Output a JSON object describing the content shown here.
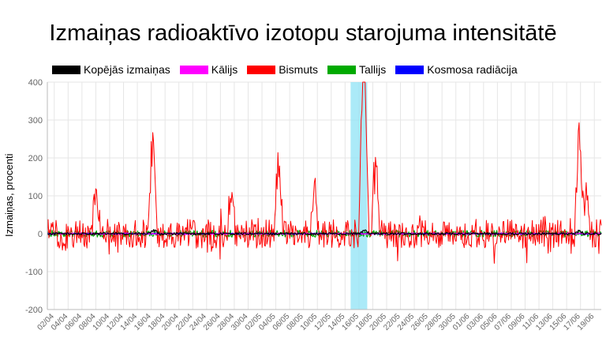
{
  "chart_data": {
    "type": "line",
    "title": "Izmaiņas radioaktīvo izotopu starojuma intensitātē",
    "xlabel": "",
    "ylabel": "Izmaiņas, procenti",
    "ylim": [
      -200,
      400
    ],
    "yticks": [
      400,
      300,
      200,
      100,
      0,
      -100,
      -200
    ],
    "grid": true,
    "legend_position": "top-left",
    "x_categories": [
      "02/04",
      "04/04",
      "06/04",
      "08/04",
      "10/04",
      "12/04",
      "14/04",
      "16/04",
      "18/04",
      "20/04",
      "22/04",
      "24/04",
      "26/04",
      "28/04",
      "30/04",
      "02/05",
      "04/05",
      "06/05",
      "08/05",
      "10/05",
      "12/05",
      "14/05",
      "16/05",
      "18/05",
      "20/05",
      "22/05",
      "24/05",
      "26/05",
      "28/05",
      "30/05",
      "01/06",
      "03/06",
      "05/06",
      "07/06",
      "09/06",
      "11/06",
      "13/06",
      "15/06",
      "17/06",
      "19/06"
    ],
    "highlight_range": [
      "14/05",
      "17/05"
    ],
    "series": [
      {
        "name": "Kopējās izmaiņas",
        "color": "#000000",
        "noise": 3,
        "peaks": [
          [
            7.2,
            12
          ],
          [
            22.4,
            14
          ],
          [
            37.9,
            10
          ]
        ]
      },
      {
        "name": "Kālijs",
        "color": "#ff00ff",
        "noise": 2,
        "peaks": []
      },
      {
        "name": "Bismuts",
        "color": "#ff0000",
        "noise": 38,
        "peaks": [
          [
            3.0,
            145
          ],
          [
            7.1,
            340
          ],
          [
            12.8,
            155
          ],
          [
            16.2,
            238
          ],
          [
            18.8,
            145
          ],
          [
            22.3,
            365
          ],
          [
            22.4,
            300
          ],
          [
            23.2,
            210
          ],
          [
            37.9,
            318
          ],
          [
            38.4,
            120
          ]
        ]
      },
      {
        "name": "Tallijs",
        "color": "#00aa00",
        "noise": 9,
        "peaks": []
      },
      {
        "name": "Kosmosa radiācija",
        "color": "#0000ff",
        "noise": 2,
        "peaks": []
      }
    ]
  }
}
